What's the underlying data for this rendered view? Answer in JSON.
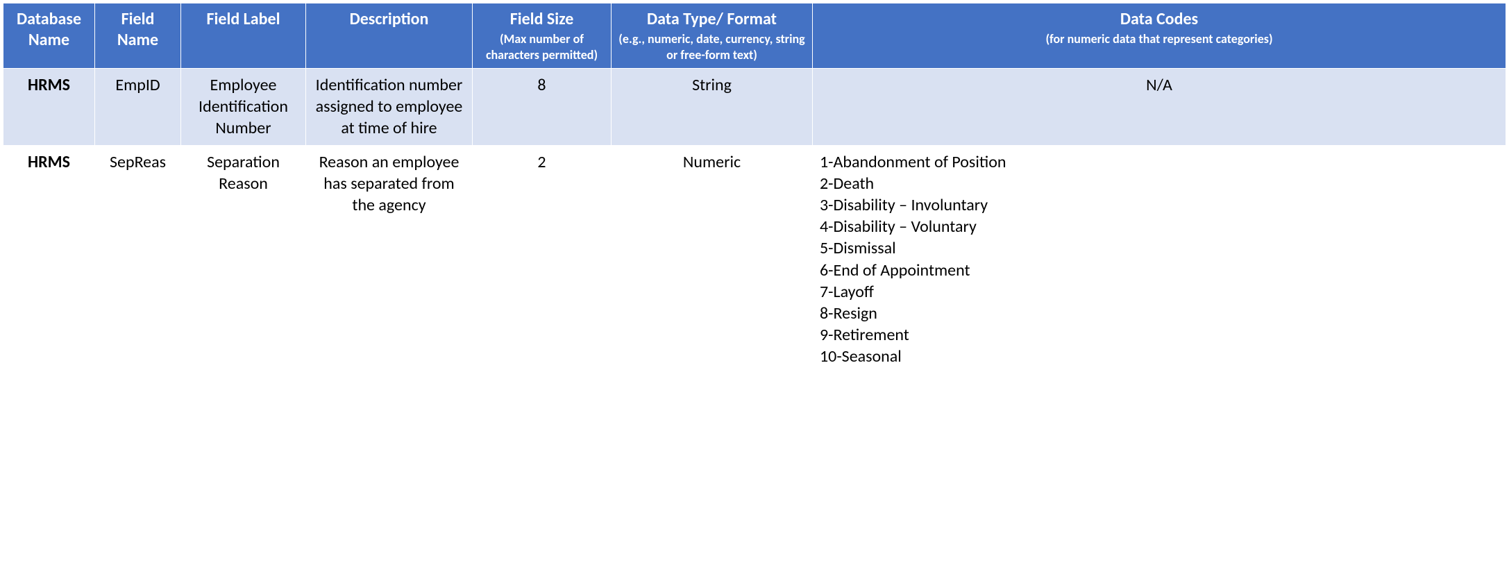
{
  "table": {
    "header_bg": "#4472c4",
    "header_fg": "#ffffff",
    "row_even_bg": "#d9e1f2",
    "row_odd_bg": "#ffffff",
    "border_color": "#ffffff",
    "columns": [
      {
        "title": "Database Name",
        "sub": ""
      },
      {
        "title": "Field Name",
        "sub": ""
      },
      {
        "title": "Field Label",
        "sub": ""
      },
      {
        "title": "Description",
        "sub": ""
      },
      {
        "title": "Field Size",
        "sub": "(Max number of characters permitted)"
      },
      {
        "title": "Data Type/ Format",
        "sub": "(e.g., numeric, date, currency, string or free-form text)"
      },
      {
        "title": "Data Codes",
        "sub": "(for numeric data that represent categories)"
      }
    ],
    "rows": [
      {
        "database_name": "HRMS",
        "field_name": "EmpID",
        "field_label": "Employee Identification Number",
        "description": "Identification number assigned to employee at time of hire",
        "field_size": "8",
        "data_type": "String",
        "data_codes_text": "N/A",
        "data_codes_list": []
      },
      {
        "database_name": "HRMS",
        "field_name": "SepReas",
        "field_label": "Separation Reason",
        "description": "Reason an employee has separated from the agency",
        "field_size": "2",
        "data_type": "Numeric",
        "data_codes_text": "",
        "data_codes_list": [
          "1-Abandonment of Position",
          "2-Death",
          "3-Disability – Involuntary",
          "4-Disability – Voluntary",
          "5-Dismissal",
          "6-End of Appointment",
          "7-Layoff",
          "8-Resign",
          "9-Retirement",
          "10-Seasonal"
        ]
      }
    ]
  }
}
